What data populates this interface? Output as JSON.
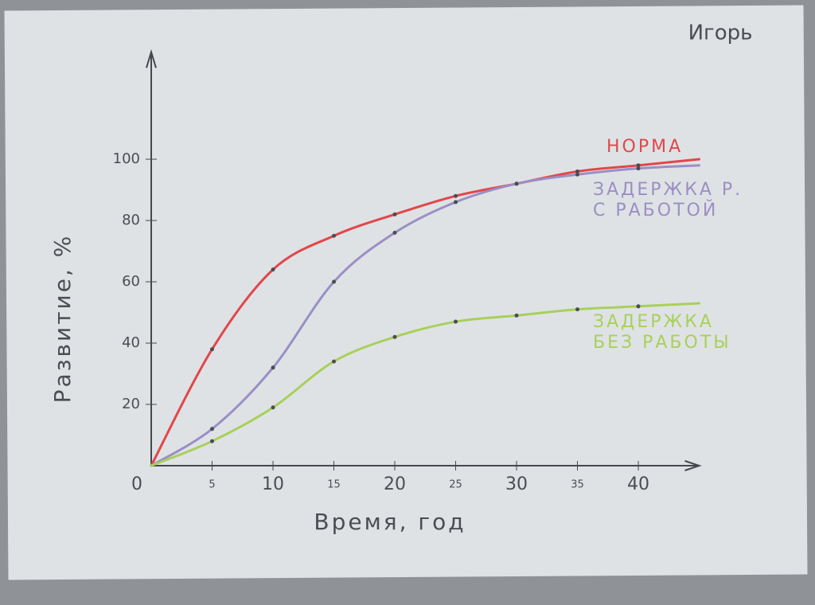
{
  "author": "Игорь",
  "chart_data": {
    "type": "line",
    "x_label": "Время, год",
    "y_label": "Развитие, %",
    "x": [
      0,
      5,
      10,
      15,
      20,
      25,
      30,
      35,
      40,
      45
    ],
    "series": [
      {
        "name": "НОРМА",
        "color": "#e2474a",
        "values": [
          0,
          38,
          64,
          75,
          82,
          88,
          92,
          96,
          98,
          100
        ]
      },
      {
        "name": "ЗАДЕРЖКА Р.\nС РАБОТОЙ",
        "color": "#9a8fc4",
        "values": [
          0,
          12,
          32,
          60,
          76,
          86,
          92,
          95,
          97,
          98
        ]
      },
      {
        "name": "ЗАДЕРЖКА\nБЕЗ РАБОТЫ",
        "color": "#a8d05a",
        "values": [
          0,
          8,
          19,
          34,
          42,
          47,
          49,
          51,
          52,
          53
        ]
      }
    ],
    "xlim": [
      0,
      45
    ],
    "ylim": [
      0,
      135
    ],
    "xticks": [
      0,
      5,
      10,
      15,
      20,
      25,
      30,
      35,
      40
    ],
    "yticks": [
      20,
      40,
      60,
      80,
      100
    ]
  }
}
